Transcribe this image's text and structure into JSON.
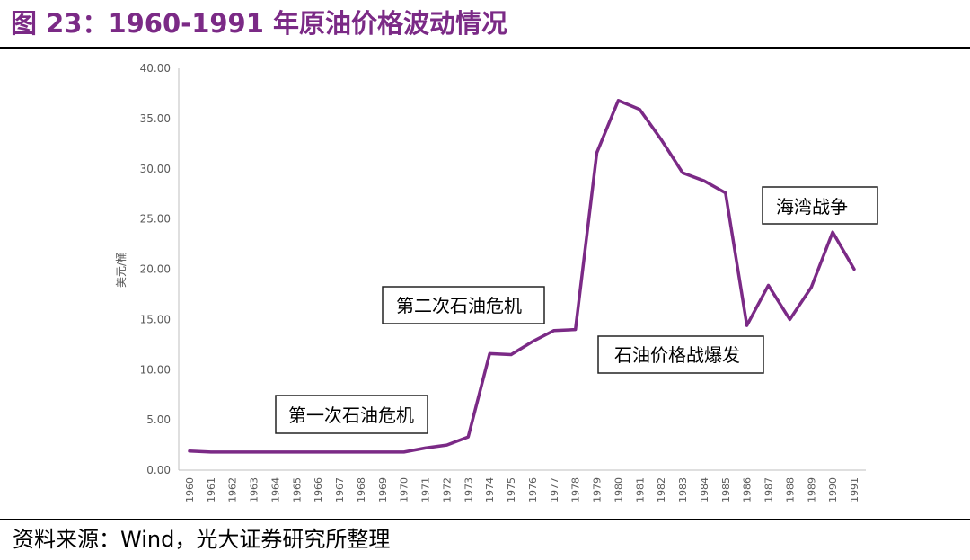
{
  "figure": {
    "title": "图 23：1960-1991 年原油价格波动情况",
    "source": "资料来源：Wind，光大证券研究所整理",
    "accent_color": "#7b2a86",
    "line_color": "#7b2a86"
  },
  "chart_data": {
    "type": "line",
    "title": "图 23：1960-1991 年原油价格波动情况",
    "xlabel": "",
    "ylabel": "美元/桶",
    "ylim": [
      0,
      40
    ],
    "ytick_labels": [
      "0.00",
      "5.00",
      "10.00",
      "15.00",
      "20.00",
      "25.00",
      "30.00",
      "35.00",
      "40.00"
    ],
    "categories": [
      "1960",
      "1961",
      "1962",
      "1963",
      "1964",
      "1965",
      "1966",
      "1967",
      "1968",
      "1969",
      "1970",
      "1971",
      "1972",
      "1973",
      "1974",
      "1975",
      "1976",
      "1977",
      "1978",
      "1979",
      "1980",
      "1981",
      "1982",
      "1983",
      "1984",
      "1985",
      "1986",
      "1987",
      "1988",
      "1989",
      "1990",
      "1991"
    ],
    "series": [
      {
        "values": [
          1.9,
          1.8,
          1.8,
          1.8,
          1.8,
          1.8,
          1.8,
          1.8,
          1.8,
          1.8,
          1.8,
          2.2,
          2.5,
          3.3,
          11.6,
          11.5,
          12.8,
          13.9,
          14.0,
          31.6,
          36.8,
          35.9,
          32.9,
          29.6,
          28.8,
          27.6,
          14.4,
          18.4,
          15.0,
          18.2,
          23.7,
          20.0
        ]
      }
    ],
    "grid": false,
    "legend": "none",
    "annotations": [
      "第一次石油危机",
      "第二次石油危机",
      "石油价格战爆发",
      "海湾战争"
    ]
  }
}
